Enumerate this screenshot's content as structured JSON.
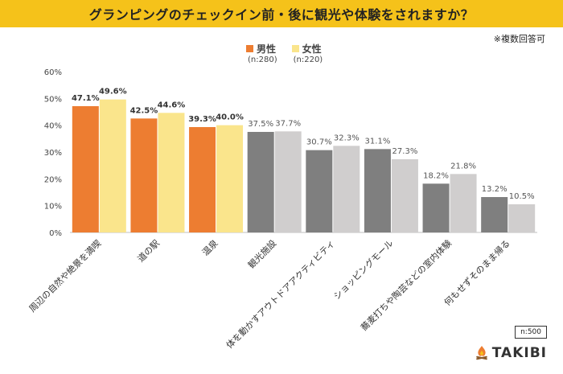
{
  "header": {
    "title": "グランピングのチェックイン前・後に観光や体験をされますか？",
    "note": "※複数回答可"
  },
  "legend": {
    "male_label": "男性",
    "male_n": "(n:280)",
    "female_label": "女性",
    "female_n": "(n:220)"
  },
  "footer": {
    "sample": "n:500",
    "brand": "TAKIBI"
  },
  "colors": {
    "male_highlight": "#ed7d31",
    "female_highlight": "#fae58c",
    "male_other": "#7f7f7f",
    "female_other": "#d0cece",
    "accent": "#f5c21a"
  },
  "icons": {
    "logo": "campfire-icon"
  },
  "chart_data": {
    "type": "bar",
    "title": "グランピングのチェックイン前・後に観光や体験をされますか？",
    "categories": [
      "周辺の自然や絶景を満喫",
      "道の駅",
      "温泉",
      "観光施設",
      "体を動かすアウトドアアクティビティ",
      "ショッピングモール",
      "蕎麦打ちや陶芸などの室内体験",
      "何もせずそのまま帰る"
    ],
    "series": [
      {
        "name": "男性",
        "values": [
          47.1,
          42.5,
          39.3,
          37.5,
          30.7,
          31.1,
          18.2,
          13.2
        ]
      },
      {
        "name": "女性",
        "values": [
          49.6,
          44.6,
          40.0,
          37.7,
          32.3,
          27.3,
          21.8,
          10.5
        ]
      }
    ],
    "value_labels": [
      [
        "47.1%",
        "42.5%",
        "39.3%",
        "37.5%",
        "30.7%",
        "31.1%",
        "18.2%",
        "13.2%"
      ],
      [
        "49.6%",
        "44.6%",
        "40.0%",
        "37.7%",
        "32.3%",
        "27.3%",
        "21.8%",
        "10.5%"
      ]
    ],
    "highlighted_categories": 3,
    "y_ticks": [
      0,
      10,
      20,
      30,
      40,
      50,
      60
    ],
    "y_tick_labels": [
      "0%",
      "10%",
      "20%",
      "30%",
      "40%",
      "50%",
      "60%"
    ],
    "ylim": [
      0,
      60
    ],
    "xlabel": "",
    "ylabel": "",
    "grid": false,
    "legend_position": "top-center"
  }
}
